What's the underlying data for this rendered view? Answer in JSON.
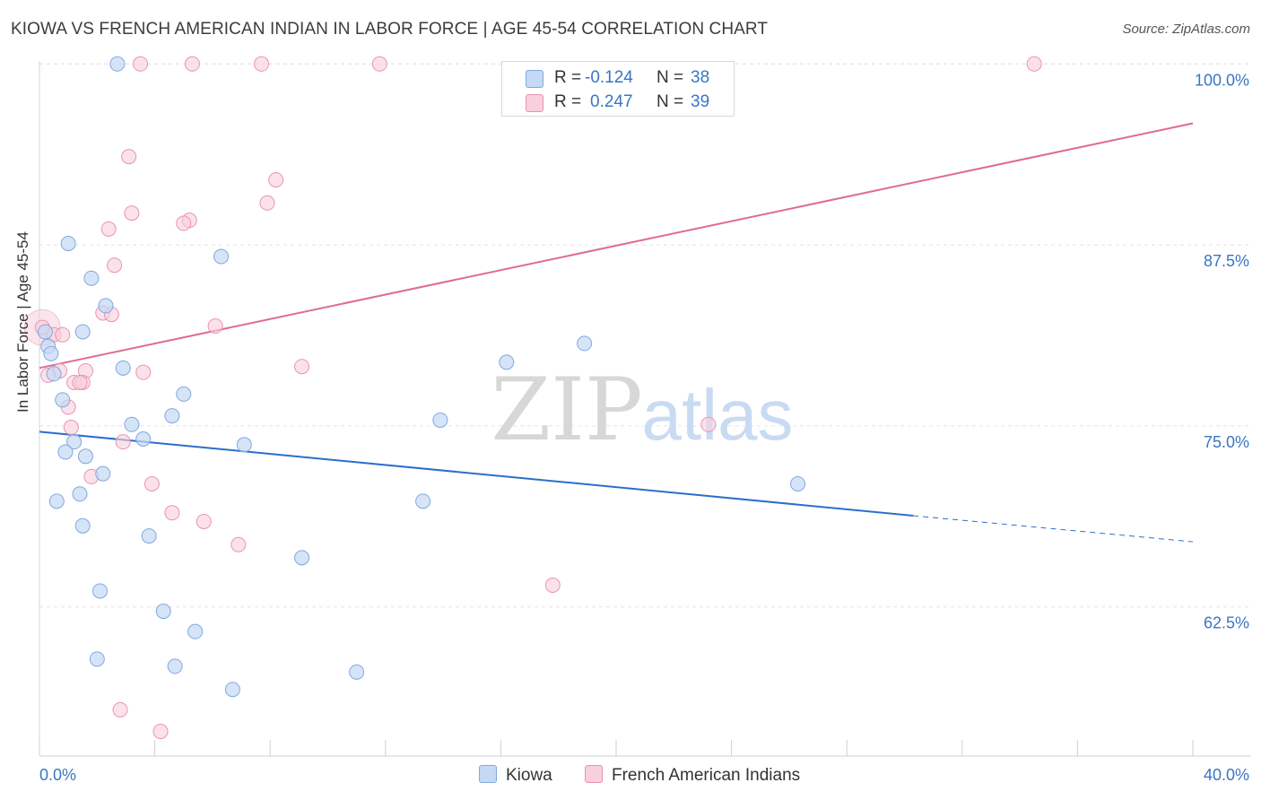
{
  "title": "KIOWA VS FRENCH AMERICAN INDIAN IN LABOR FORCE | AGE 45-54 CORRELATION CHART",
  "source": "Source: ZipAtlas.com",
  "watermark": {
    "zip": "ZIP",
    "atlas": "atlas"
  },
  "legend": {
    "rows": [
      {
        "r_label": "R =",
        "r_value": "-0.124",
        "n_label": "N =",
        "n_value": "38"
      },
      {
        "r_label": "R =",
        "r_value": "0.247",
        "n_label": "N =",
        "n_value": "39"
      }
    ]
  },
  "bottom_legend": [
    "Kiowa",
    "French American Indians"
  ],
  "colors": {
    "kiowa_fill": "#c5d8f4",
    "kiowa_stroke": "#7fa8e0",
    "kiowa_line": "#2a6fcc",
    "french_fill": "#f8cfdc",
    "french_stroke": "#ea93b0",
    "french_line": "#e06a95",
    "axis_text": "#3a75c4",
    "grid": "#e3e3e3"
  },
  "chart_data": {
    "type": "scatter",
    "title": "KIOWA VS FRENCH AMERICAN INDIAN IN LABOR FORCE | AGE 45-54 CORRELATION CHART",
    "ylabel": "In Labor Force | Age 45-54",
    "xlabel": "",
    "xlim": [
      0,
      40
    ],
    "ylim": [
      52.2,
      100.7
    ],
    "x_tick_labels": [
      "0.0%",
      "40.0%"
    ],
    "y_ticks": [
      62.5,
      75.0,
      87.5,
      100.0
    ],
    "y_tick_labels": [
      "62.5%",
      "75.0%",
      "87.5%",
      "100.0%"
    ],
    "grid": true,
    "series": [
      {
        "name": "Kiowa",
        "points": [
          [
            2.7,
            100.0
          ],
          [
            1.0,
            87.6
          ],
          [
            6.3,
            86.7
          ],
          [
            1.8,
            85.2
          ],
          [
            2.3,
            83.3
          ],
          [
            0.2,
            81.5
          ],
          [
            1.5,
            81.5
          ],
          [
            0.3,
            80.5
          ],
          [
            0.4,
            80.0
          ],
          [
            18.9,
            80.7
          ],
          [
            16.2,
            79.4
          ],
          [
            2.9,
            79.0
          ],
          [
            0.5,
            78.6
          ],
          [
            5.0,
            77.2
          ],
          [
            0.8,
            76.8
          ],
          [
            4.6,
            75.7
          ],
          [
            13.9,
            75.4
          ],
          [
            3.2,
            75.1
          ],
          [
            3.6,
            74.1
          ],
          [
            1.2,
            73.9
          ],
          [
            7.1,
            73.7
          ],
          [
            0.9,
            73.2
          ],
          [
            1.6,
            72.9
          ],
          [
            2.2,
            71.7
          ],
          [
            26.3,
            71.0
          ],
          [
            1.4,
            70.3
          ],
          [
            0.6,
            69.8
          ],
          [
            13.3,
            69.8
          ],
          [
            1.5,
            68.1
          ],
          [
            3.8,
            67.4
          ],
          [
            9.1,
            65.9
          ],
          [
            2.1,
            63.6
          ],
          [
            4.3,
            62.2
          ],
          [
            5.4,
            60.8
          ],
          [
            2.0,
            58.9
          ],
          [
            4.7,
            58.4
          ],
          [
            11.0,
            58.0
          ],
          [
            6.7,
            56.8
          ]
        ]
      },
      {
        "name": "French American Indians",
        "points": [
          [
            3.5,
            100.0
          ],
          [
            5.3,
            100.0
          ],
          [
            7.7,
            100.0
          ],
          [
            11.8,
            100.0
          ],
          [
            34.5,
            100.0
          ],
          [
            3.1,
            93.6
          ],
          [
            8.2,
            92.0
          ],
          [
            7.9,
            90.4
          ],
          [
            3.2,
            89.7
          ],
          [
            5.2,
            89.2
          ],
          [
            5.0,
            89.0
          ],
          [
            2.4,
            88.6
          ],
          [
            2.6,
            86.1
          ],
          [
            2.2,
            82.8
          ],
          [
            6.1,
            81.9
          ],
          [
            0.1,
            81.8
          ],
          [
            0.5,
            81.3
          ],
          [
            0.8,
            81.3
          ],
          [
            9.1,
            79.1
          ],
          [
            0.7,
            78.8
          ],
          [
            1.6,
            78.8
          ],
          [
            3.6,
            78.7
          ],
          [
            1.2,
            78.0
          ],
          [
            1.5,
            78.0
          ],
          [
            1.0,
            76.3
          ],
          [
            1.1,
            74.9
          ],
          [
            23.2,
            75.1
          ],
          [
            2.9,
            73.9
          ],
          [
            1.8,
            71.5
          ],
          [
            3.9,
            71.0
          ],
          [
            4.6,
            69.0
          ],
          [
            5.7,
            68.4
          ],
          [
            6.9,
            66.8
          ],
          [
            17.8,
            64.0
          ],
          [
            2.8,
            55.4
          ],
          [
            4.2,
            53.9
          ],
          [
            0.3,
            78.5
          ],
          [
            2.5,
            82.7
          ],
          [
            1.4,
            78.0
          ]
        ]
      }
    ],
    "trend_lines": [
      {
        "series": "Kiowa",
        "x": [
          0,
          30.3
        ],
        "y": [
          74.6,
          68.8
        ],
        "dashed_extension_to": [
          40,
          67.0
        ]
      },
      {
        "series": "French American Indians",
        "x": [
          0,
          40
        ],
        "y": [
          79.0,
          95.9
        ]
      }
    ]
  }
}
